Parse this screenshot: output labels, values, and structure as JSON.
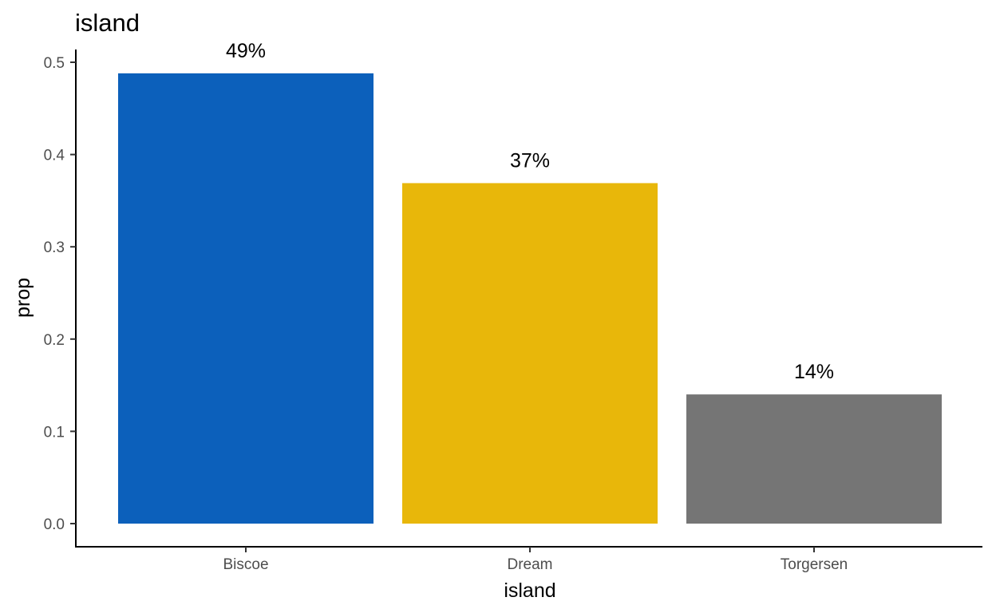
{
  "chart_data": {
    "type": "bar",
    "title": "island",
    "xlabel": "island",
    "ylabel": "prop",
    "categories": [
      "Biscoe",
      "Dream",
      "Torgersen"
    ],
    "values": [
      0.488,
      0.369,
      0.14
    ],
    "labels": [
      "49%",
      "37%",
      "14%"
    ],
    "colors": [
      "#0C60BB",
      "#E8B70A",
      "#757575"
    ],
    "ylim": [
      0,
      0.5
    ],
    "yticks": [
      0.0,
      0.1,
      0.2,
      0.3,
      0.4,
      0.5
    ],
    "ytick_labels": [
      "0.0",
      "0.1",
      "0.2",
      "0.3",
      "0.4",
      "0.5"
    ],
    "grid": false,
    "legend": "none"
  }
}
